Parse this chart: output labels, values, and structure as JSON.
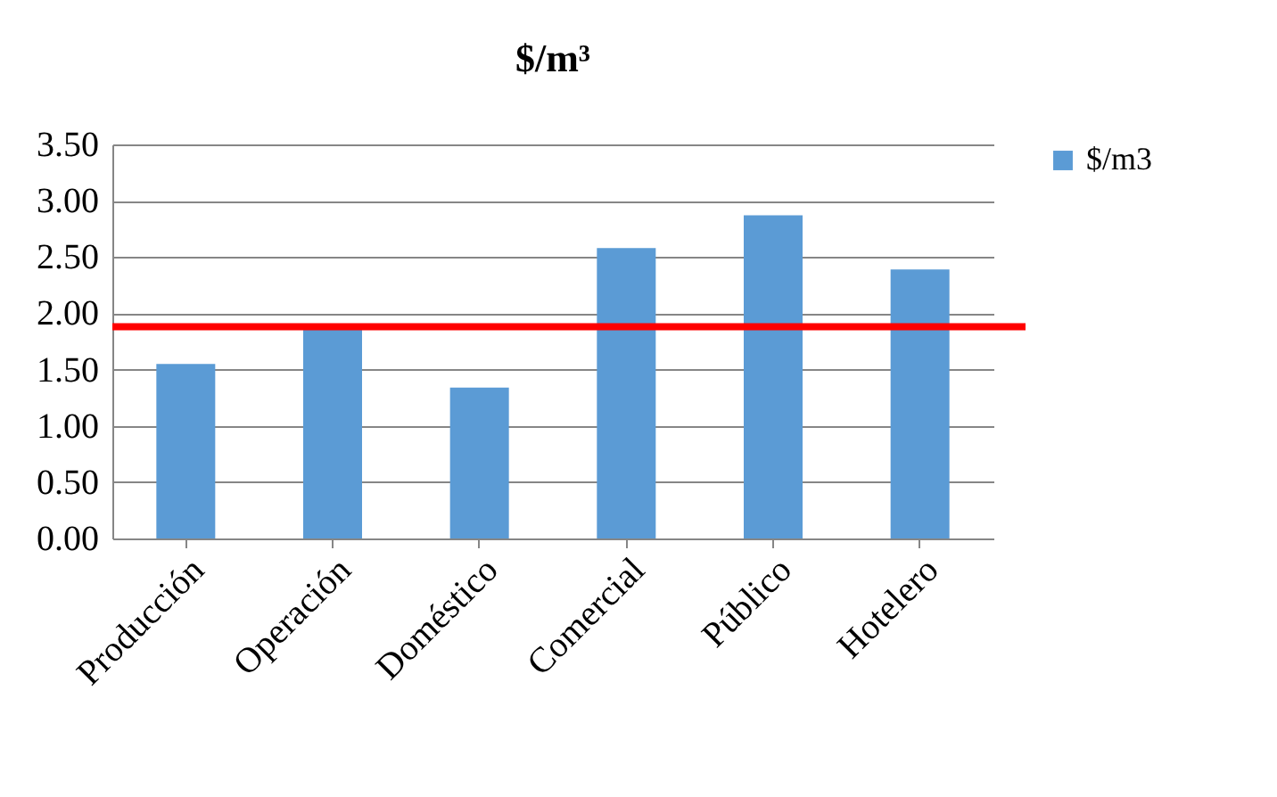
{
  "chart_data": {
    "type": "bar",
    "title": "$/m³",
    "categories": [
      "Producción",
      "Operación",
      "Doméstico",
      "Comercial",
      "Público",
      "Hotelero"
    ],
    "series": [
      {
        "name": "$/m3",
        "color": "#5b9bd5",
        "values": [
          1.55,
          1.88,
          1.34,
          2.58,
          2.87,
          2.39
        ]
      }
    ],
    "ylim": [
      0,
      3.5
    ],
    "yticks": [
      {
        "value": 0,
        "label": "0.00"
      },
      {
        "value": 0.5,
        "label": "0.50"
      },
      {
        "value": 1,
        "label": "1.00"
      },
      {
        "value": 1.5,
        "label": "1.50"
      },
      {
        "value": 2,
        "label": "2.00"
      },
      {
        "value": 2.5,
        "label": "2.50"
      },
      {
        "value": 3,
        "label": "3.00"
      },
      {
        "value": 3.5,
        "label": "3.50"
      }
    ],
    "grid": "y",
    "legend": "right",
    "ref_lines": [
      {
        "axis": "y",
        "value": 1.88,
        "color": "#ff0000"
      }
    ]
  }
}
